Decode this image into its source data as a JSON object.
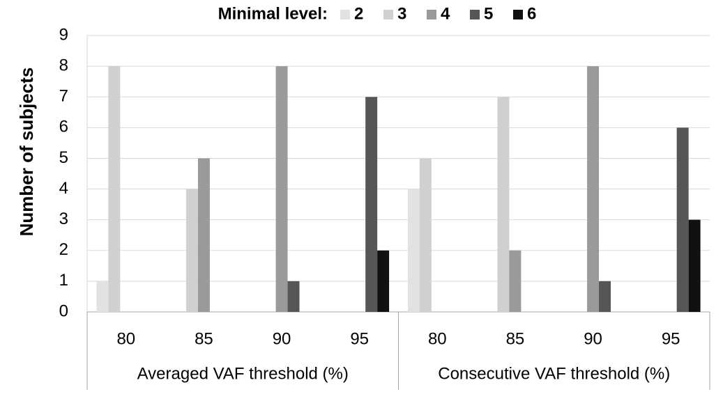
{
  "chart_data": {
    "type": "bar",
    "y_label": "Number of subjects",
    "legend_title": "Minimal level:",
    "categories": [
      "80",
      "85",
      "90",
      "95",
      "80",
      "85",
      "90",
      "95"
    ],
    "groups": [
      {
        "label": "Averaged VAF threshold (%)",
        "size": 4
      },
      {
        "label": "Consecutive VAF threshold (%)",
        "size": 4
      }
    ],
    "series": [
      {
        "name": "2",
        "color": "#e2e2e2",
        "values": [
          1,
          0,
          0,
          0,
          4,
          0,
          0,
          0
        ]
      },
      {
        "name": "3",
        "color": "#d0d0d0",
        "values": [
          8,
          4,
          0,
          0,
          5,
          7,
          0,
          0
        ]
      },
      {
        "name": "4",
        "color": "#9a9a9a",
        "values": [
          0,
          5,
          8,
          0,
          0,
          2,
          8,
          0
        ]
      },
      {
        "name": "5",
        "color": "#565656",
        "values": [
          0,
          0,
          1,
          7,
          0,
          0,
          1,
          6
        ]
      },
      {
        "name": "6",
        "color": "#111111",
        "values": [
          0,
          0,
          0,
          2,
          0,
          0,
          0,
          3
        ]
      }
    ],
    "ylim": [
      0,
      9
    ],
    "yticks": [
      0,
      1,
      2,
      3,
      4,
      5,
      6,
      7,
      8,
      9
    ],
    "grid": true,
    "legend": "top"
  }
}
